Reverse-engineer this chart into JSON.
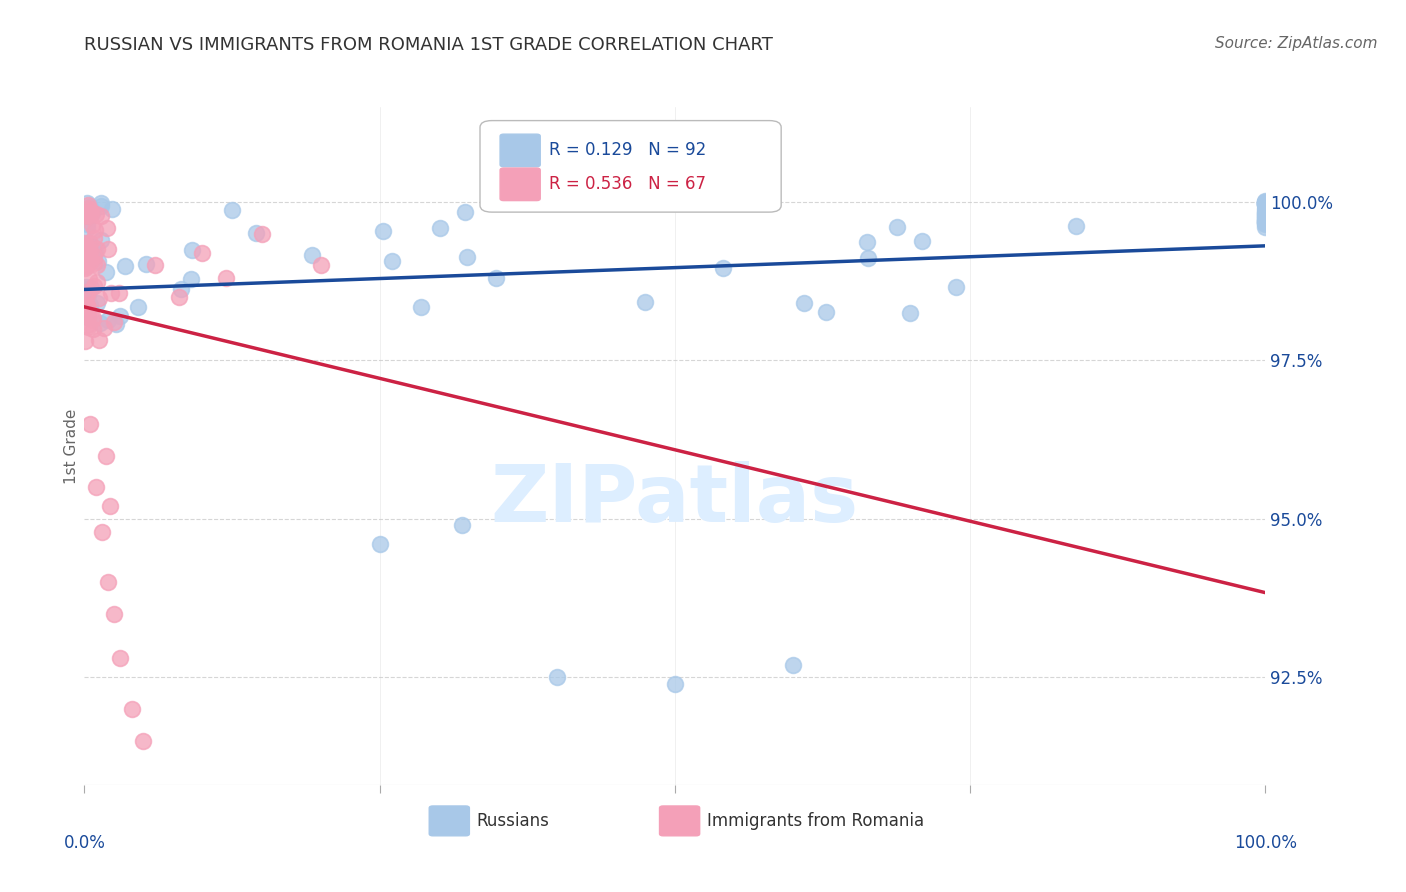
{
  "title": "RUSSIAN VS IMMIGRANTS FROM ROMANIA 1ST GRADE CORRELATION CHART",
  "source": "Source: ZipAtlas.com",
  "ylabel": "1st Grade",
  "y_ticks": [
    92.5,
    95.0,
    97.5,
    100.0
  ],
  "y_tick_labels": [
    "92.5%",
    "95.0%",
    "97.5%",
    "100.0%"
  ],
  "ylim": [
    90.8,
    101.5
  ],
  "xlim": [
    0.0,
    100.0
  ],
  "legend_blue_r": "R = 0.129",
  "legend_blue_n": "N = 92",
  "legend_pink_r": "R = 0.536",
  "legend_pink_n": "N = 67",
  "legend_label_blue": "Russians",
  "legend_label_pink": "Immigrants from Romania",
  "blue_color": "#a8c8e8",
  "pink_color": "#f4a0b8",
  "line_blue_color": "#1a4a9a",
  "line_pink_color": "#cc2244",
  "text_blue_color": "#1a4a9a",
  "text_pink_color": "#cc2244",
  "watermark_color": "#ddeeff"
}
